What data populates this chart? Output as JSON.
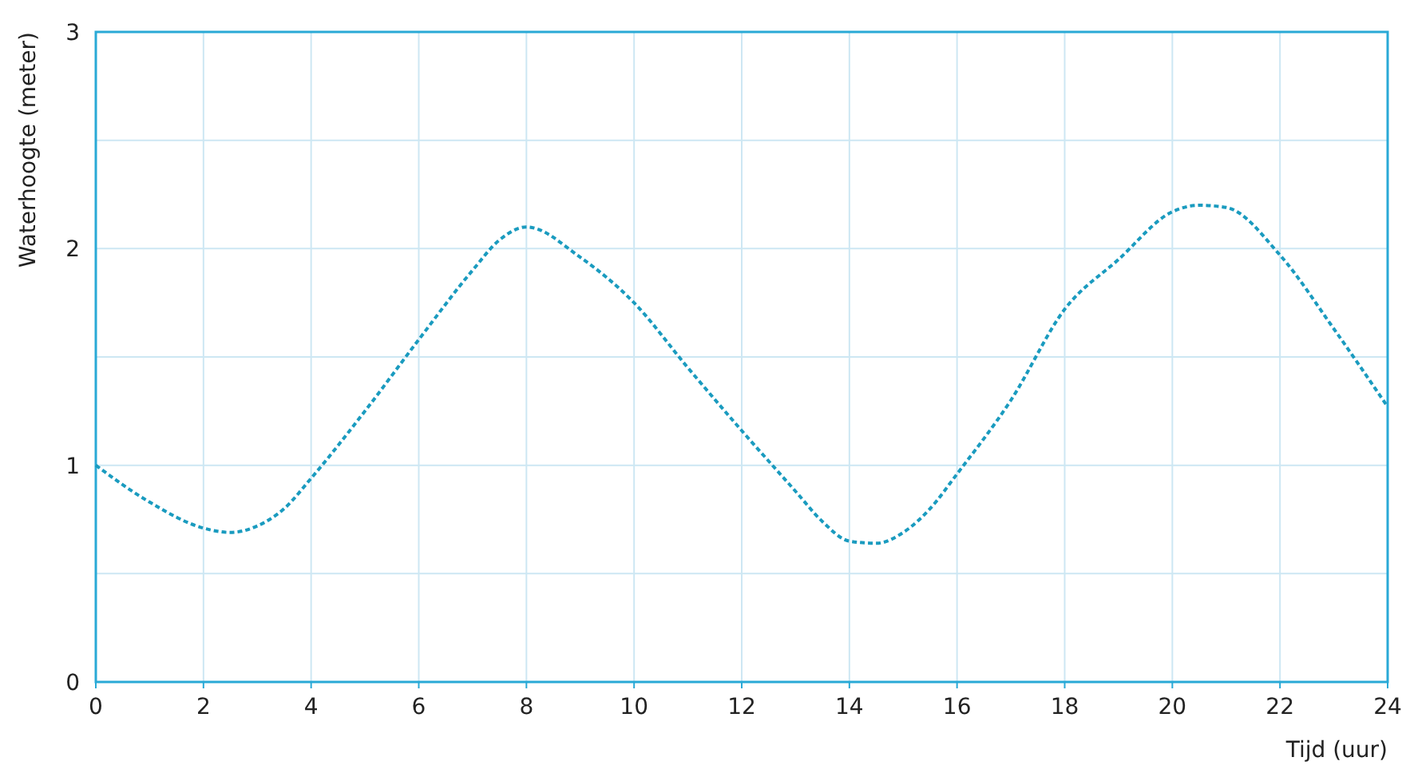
{
  "chart_data": {
    "type": "line",
    "xlabel": "Tijd (uur)",
    "ylabel": "Waterhoogte (meter)",
    "x": [
      0,
      1,
      2,
      2.5,
      3,
      3.5,
      4,
      5,
      6,
      7,
      7.5,
      8,
      9,
      10,
      11,
      12,
      13,
      13.5,
      14,
      14.5,
      15,
      15.5,
      16,
      17,
      18,
      19,
      20,
      20.5,
      21,
      22,
      23,
      24
    ],
    "series": [
      {
        "color": "#1a9bbf",
        "values": [
          1.0,
          0.83,
          0.71,
          0.69,
          0.72,
          0.8,
          0.94,
          1.25,
          1.58,
          1.9,
          2.04,
          2.1,
          1.96,
          1.75,
          1.45,
          1.16,
          0.88,
          0.74,
          0.65,
          0.64,
          0.69,
          0.8,
          0.96,
          1.3,
          1.72,
          1.95,
          2.17,
          2.2,
          2.19,
          1.97,
          1.63,
          1.27
        ]
      }
    ],
    "xlim": [
      0,
      24
    ],
    "xticks": [
      0,
      2,
      4,
      6,
      8,
      10,
      12,
      14,
      16,
      18,
      20,
      22,
      24
    ],
    "ylim": [
      0,
      3
    ],
    "yticks": [
      0,
      {
        "value": 0.5,
        "label": null
      },
      1,
      {
        "value": 1.5,
        "label": null
      },
      2,
      {
        "value": 2.5,
        "label": null
      },
      3
    ],
    "grid": true,
    "line_style": "dotted",
    "marker": "none"
  }
}
